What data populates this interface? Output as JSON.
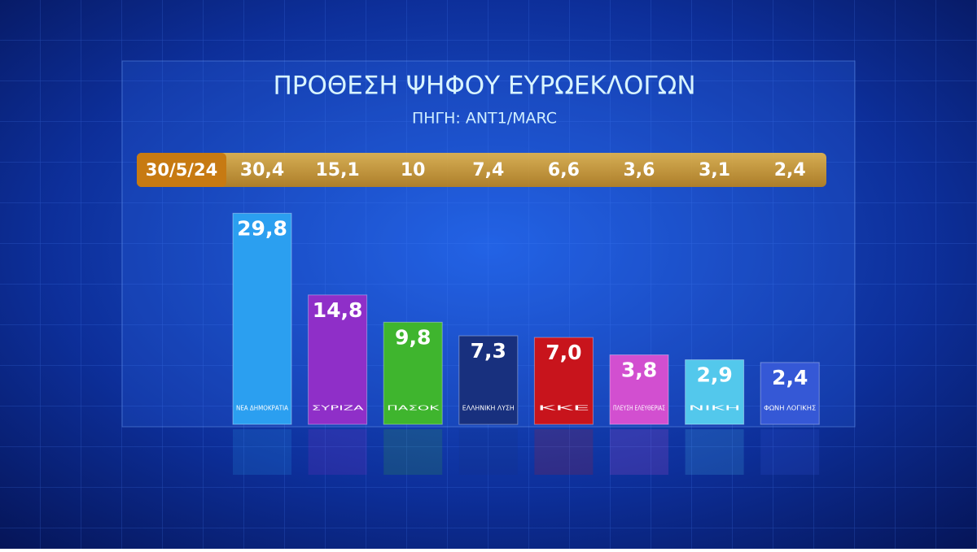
{
  "chart_data": {
    "type": "bar",
    "title": "ΠΡΟΘΕΣΗ ΨΗΦΟΥ ΕΥΡΩΕΚΛΟΓΩΝ",
    "subtitle": "ΠΗΓΗ: ANT1/MARC",
    "categories": [
      "ΝΕΑ ΔΗΜΟΚΡΑΤΙΑ",
      "ΣΥΡΙΖΑ",
      "ΠΑΣΟΚ",
      "ΕΛΛΗΝΙΚΗ ΛΥΣΗ",
      "ΚΚΕ",
      "ΠΛΕΥΣΗ ΕΛΕΥΘΕΡΙΑΣ",
      "ΝΙΚΗ",
      "ΦΩΝΗ ΛΟΓΙΚΗΣ"
    ],
    "values": [
      29.8,
      14.8,
      9.8,
      7.3,
      7.0,
      3.8,
      2.9,
      2.4
    ],
    "value_labels": [
      "29,8",
      "14,8",
      "9,8",
      "7,3",
      "7,0",
      "3,8",
      "2,9",
      "2,4"
    ],
    "colors": [
      "#2b9ff0",
      "#8f2fc8",
      "#3fb52e",
      "#18307e",
      "#c8141c",
      "#d24fd0",
      "#53c8ec",
      "#3558d6"
    ],
    "previous": {
      "label": "30/5/24",
      "values": [
        30.4,
        15.1,
        10,
        7.4,
        6.6,
        3.6,
        3.1,
        2.4
      ],
      "value_labels": [
        "30,4",
        "15,1",
        "10",
        "7,4",
        "6,6",
        "3,6",
        "3,1",
        "2,4"
      ]
    }
  }
}
